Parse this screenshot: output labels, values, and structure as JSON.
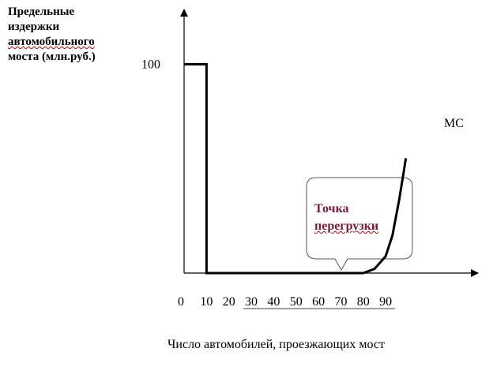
{
  "chart_data": {
    "type": "line",
    "ylabel_lines": [
      "Предельные",
      "издержки",
      "автомобильного",
      "моста (млн.руб.)"
    ],
    "xlabel": "Число автомобилей, проезжающих мост",
    "y_tick_labels": [
      "100"
    ],
    "x_tick_labels": [
      "0",
      "10",
      "20",
      "30",
      "40",
      "50",
      "60",
      "70",
      "80",
      "90"
    ],
    "xlim": [
      0,
      100
    ],
    "ylim": [
      0,
      120
    ],
    "series": [
      {
        "name": "МС",
        "x": [
          0,
          10,
          10,
          20,
          30,
          40,
          50,
          60,
          70,
          80,
          85,
          90,
          93,
          96,
          98,
          99
        ],
        "y": [
          100,
          100,
          0,
          0,
          0,
          0,
          0,
          0,
          0,
          0,
          2,
          8,
          18,
          35,
          48,
          55
        ]
      }
    ],
    "annotation": {
      "lines": [
        "Точка",
        "перегрузки"
      ],
      "points_to_x": 60
    },
    "grid": false
  }
}
